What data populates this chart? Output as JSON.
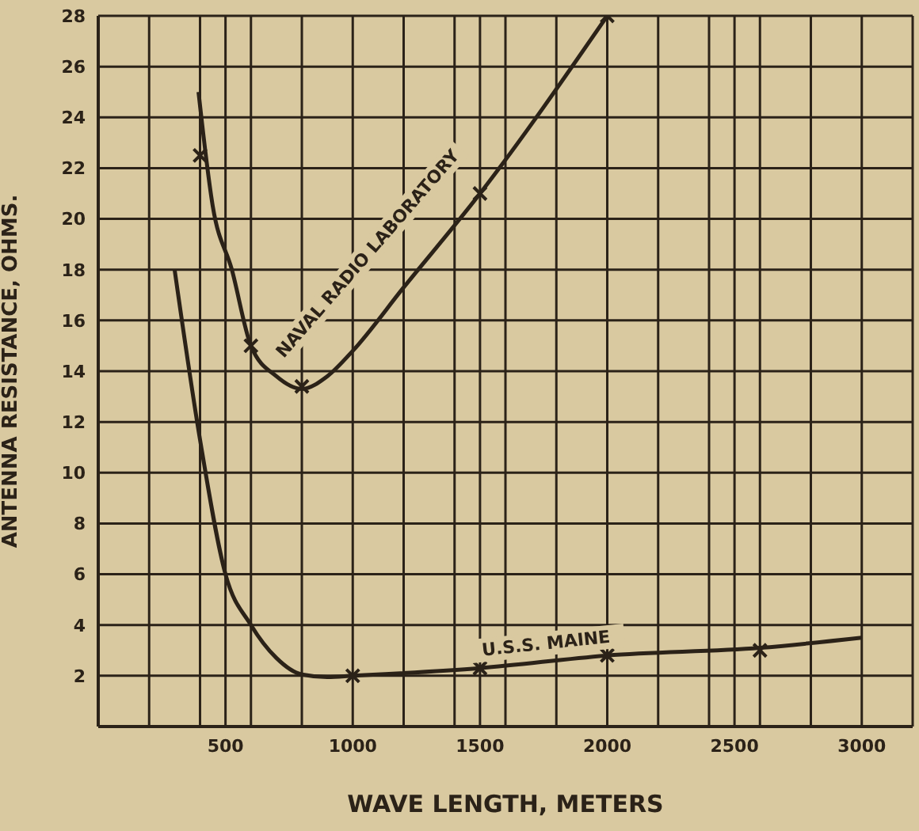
{
  "chart_data": {
    "type": "line",
    "xlabel": "WAVE LENGTH, METERS",
    "ylabel": "ANTENNA RESISTANCE, OHMS.",
    "xlim": [
      0,
      3200
    ],
    "ylim": [
      0,
      28
    ],
    "xticks": [
      {
        "value": 200,
        "label": null
      },
      {
        "value": 400,
        "label": null
      },
      500,
      {
        "value": 600,
        "label": null
      },
      {
        "value": 800,
        "label": null
      },
      1000,
      {
        "value": 1200,
        "label": null
      },
      {
        "value": 1400,
        "label": null
      },
      1500,
      {
        "value": 1600,
        "label": null
      },
      {
        "value": 1800,
        "label": null
      },
      2000,
      {
        "value": 2200,
        "label": null
      },
      {
        "value": 2400,
        "label": null
      },
      2500,
      {
        "value": 2600,
        "label": null
      },
      {
        "value": 2800,
        "label": null
      },
      3000
    ],
    "yticks": [
      2,
      4,
      6,
      8,
      10,
      12,
      14,
      16,
      18,
      20,
      22,
      24,
      26,
      28
    ],
    "grid": true,
    "series": [
      {
        "name": "NAVAL RADIO LABORATORY",
        "color": "#2b2218",
        "x": [
          394,
          450,
          525,
          600,
          700,
          800,
          900,
          1000,
          1200,
          1500,
          2000
        ],
        "values": [
          25,
          20.5,
          18,
          15,
          13.8,
          13.3,
          13.8,
          14.8,
          17.3,
          21,
          28
        ]
      },
      {
        "name": "U.S.S. MAINE",
        "color": "#2b2218",
        "x": [
          300,
          400,
          500,
          600,
          700,
          800,
          900,
          1000,
          1500,
          2000,
          2600,
          3000
        ],
        "values": [
          18,
          11.3,
          6,
          4,
          2.7,
          2.05,
          1.95,
          2,
          2.3,
          2.8,
          3.1,
          3.5
        ]
      },
      {
        "type": "scatter",
        "marker": "cross",
        "color": "#2b2218",
        "x": [
          400,
          600,
          800,
          1500,
          2000
        ],
        "values": [
          22.5,
          15,
          13.4,
          21,
          28
        ]
      },
      {
        "type": "scatter",
        "marker": "cross",
        "color": "#2b2218",
        "x": [
          1000,
          1500,
          2000,
          2600
        ],
        "values": [
          2,
          2.3,
          2.8,
          3
        ]
      }
    ]
  }
}
